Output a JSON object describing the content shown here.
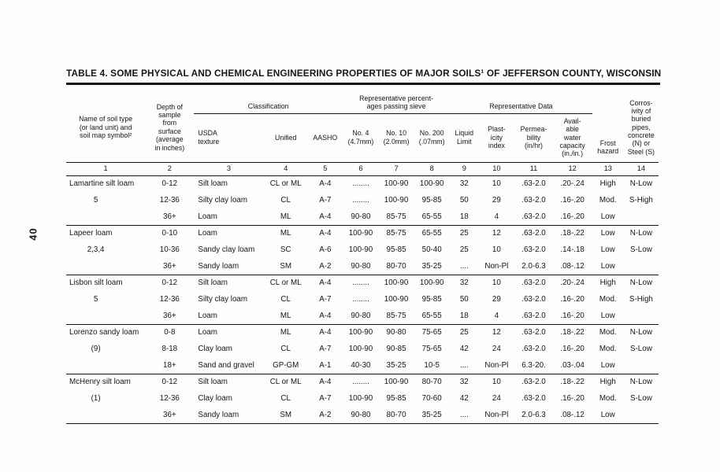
{
  "page": {
    "page_number": "40",
    "title": "TABLE 4. SOME PHYSICAL AND CHEMICAL ENGINEERING PROPERTIES OF MAJOR SOILS¹ OF JEFFERSON COUNTY, WISCONSIN"
  },
  "table": {
    "header": {
      "col1": "Name of soil type\n(or land unit) and\nsoil map symbol²",
      "col2": "Depth of\nsample\nfrom\nsurface\n(average\nin inches)",
      "classification": "Classification",
      "usda": "USDA\ntexture",
      "unified": "Unified",
      "aasho": "AASHO",
      "sieve_group": "Representative percent-\nages passing sieve",
      "no4": "No. 4\n(4.7mm)",
      "no10": "No. 10\n(2.0mm)",
      "no200": "No. 200\n(.07mm)",
      "repdata_group": "Representative Data",
      "liquid": "Liquid\nLimit",
      "plasticity": "Plast-\nicity\nindex",
      "permeability": "Permea-\nbility\n(in/hr)",
      "awc": "Avail-\nable\nwater\ncapacity\n(in./in.)",
      "frost": "Frost\nhazard",
      "corrosivity": "Corros-\nivity of\nburied\npipes,\nconcrete\n(N) or\nSteel (S)"
    },
    "column_numbers": [
      "1",
      "2",
      "3",
      "4",
      "5",
      "6",
      "7",
      "8",
      "9",
      "10",
      "11",
      "12",
      "13",
      "14"
    ],
    "groups": [
      {
        "name": "Lamartine silt loam",
        "symbol": "5",
        "rows": [
          [
            "0-12",
            "Silt loam",
            "CL or ML",
            "A-4",
            "........",
            "100-90",
            "100-90",
            "32",
            "10",
            ".63-2.0",
            ".20-.24",
            "High",
            "N-Low"
          ],
          [
            "12-36",
            "Silty clay loam",
            "CL",
            "A-7",
            "........",
            "100-90",
            "95-85",
            "50",
            "29",
            ".63-2.0",
            ".16-.20",
            "Mod.",
            "S-High"
          ],
          [
            "36+",
            "Loam",
            "ML",
            "A-4",
            "90-80",
            "85-75",
            "65-55",
            "18",
            "4",
            ".63-2.0",
            ".16-.20",
            "Low",
            ""
          ]
        ]
      },
      {
        "name": "Lapeer loam",
        "symbol": "2,3,4",
        "rows": [
          [
            "0-10",
            "Loam",
            "ML",
            "A-4",
            "100-90",
            "85-75",
            "65-55",
            "25",
            "12",
            ".63-2.0",
            ".18-.22",
            "Low",
            "N-Low"
          ],
          [
            "10-36",
            "Sandy clay loam",
            "SC",
            "A-6",
            "100-90",
            "95-85",
            "50-40",
            "25",
            "10",
            ".63-2.0",
            ".14-.18",
            "Low",
            "S-Low"
          ],
          [
            "36+",
            "Sandy loam",
            "SM",
            "A-2",
            "90-80",
            "80-70",
            "35-25",
            "....",
            "Non-Pl",
            "2.0-6.3",
            ".08-.12",
            "Low",
            ""
          ]
        ]
      },
      {
        "name": "Lisbon silt loam",
        "symbol": "5",
        "rows": [
          [
            "0-12",
            "Silt loam",
            "CL or ML",
            "A-4",
            "........",
            "100-90",
            "100-90",
            "32",
            "10",
            ".63-2.0",
            ".20-.24",
            "High",
            "N-Low"
          ],
          [
            "12-36",
            "Silty clay loam",
            "CL",
            "A-7",
            "........",
            "100-90",
            "95-85",
            "50",
            "29",
            ".63-2.0",
            ".16-.20",
            "Mod.",
            "S-High"
          ],
          [
            "36+",
            "Loam",
            "ML",
            "A-4",
            "90-80",
            "85-75",
            "65-55",
            "18",
            "4",
            ".63-2.0",
            ".16-.20",
            "Low",
            ""
          ]
        ]
      },
      {
        "name": "Lorenzo sandy loam",
        "symbol": "(9)",
        "rows": [
          [
            "0-8",
            "Loam",
            "ML",
            "A-4",
            "100-90",
            "90-80",
            "75-65",
            "25",
            "12",
            ".63-2.0",
            ".18-.22",
            "Mod.",
            "N-Low"
          ],
          [
            "8-18",
            "Clay loam",
            "CL",
            "A-7",
            "100-90",
            "90-85",
            "75-65",
            "42",
            "24",
            ".63-2.0",
            ".16-.20",
            "Mod.",
            "S-Low"
          ],
          [
            "18+",
            "Sand and gravel",
            "GP-GM",
            "A-1",
            "40-30",
            "35-25",
            "10-5",
            "....",
            "Non-Pl",
            "6.3-20.",
            ".03-.04",
            "Low",
            ""
          ]
        ]
      },
      {
        "name": "McHenry silt loam",
        "symbol": "(1)",
        "rows": [
          [
            "0-12",
            "Silt loam",
            "CL or ML",
            "A-4",
            "........",
            "100-90",
            "80-70",
            "32",
            "10",
            ".63-2.0",
            ".18-.22",
            "High",
            "N-Low"
          ],
          [
            "12-36",
            "Clay loam",
            "CL",
            "A-7",
            "100-90",
            "95-85",
            "70-60",
            "42",
            "24",
            ".63-2.0",
            ".16-.20",
            "Mod.",
            "S-Low"
          ],
          [
            "36+",
            "Sandy loam",
            "SM",
            "A-2",
            "90-80",
            "80-70",
            "35-25",
            "....",
            "Non-Pl",
            "2.0-6.3",
            ".08-.12",
            "Low",
            ""
          ]
        ]
      }
    ]
  }
}
